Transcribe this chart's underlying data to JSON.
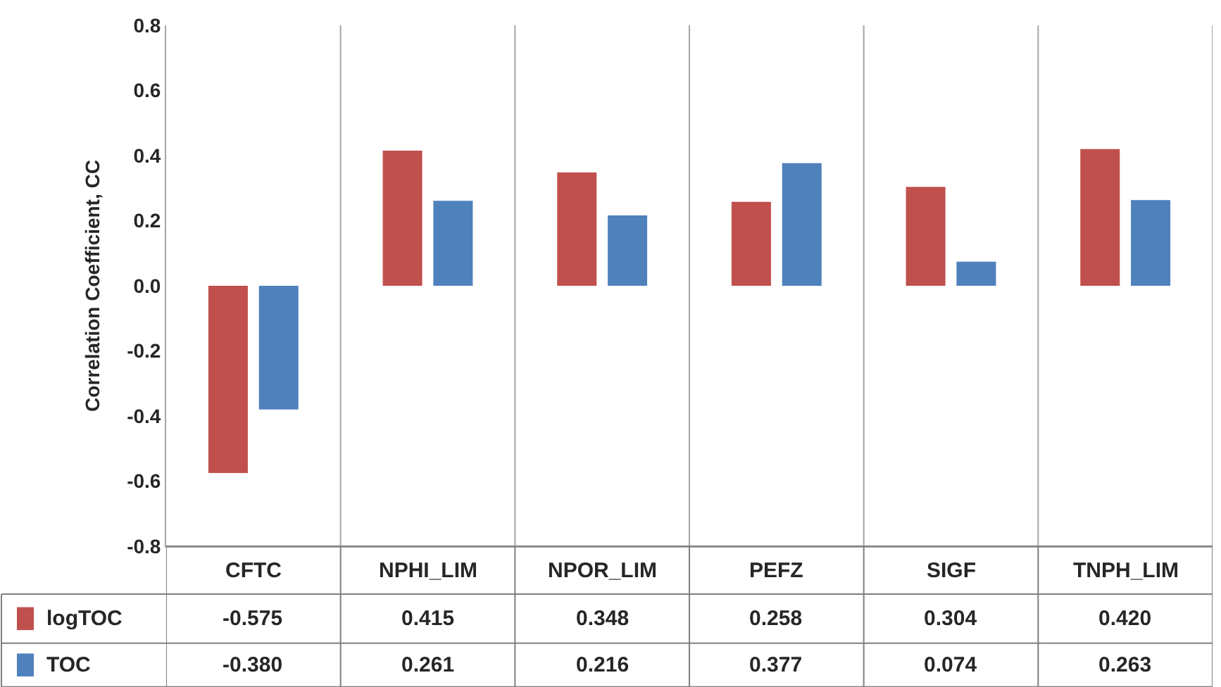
{
  "chart_data": {
    "type": "bar",
    "ylabel": "Correlation Coefficient, CC",
    "categories": [
      "CFTC",
      "NPHI_LIM",
      "NPOR_LIM",
      "PEFZ",
      "SIGF",
      "TNPH_LIM"
    ],
    "series": [
      {
        "name": "logTOC",
        "color": "#c0504d",
        "values": [
          -0.575,
          0.415,
          0.348,
          0.258,
          0.304,
          0.42
        ],
        "value_labels": [
          "-0.575",
          "0.415",
          "0.348",
          "0.258",
          "0.304",
          "0.420"
        ]
      },
      {
        "name": "TOC",
        "color": "#4f81bd",
        "values": [
          -0.38,
          0.261,
          0.216,
          0.377,
          0.074,
          0.263
        ],
        "value_labels": [
          "-0.380",
          "0.261",
          "0.216",
          "0.377",
          "0.074",
          "0.263"
        ]
      }
    ],
    "ylim": [
      -0.8,
      0.8
    ],
    "yticks": [
      {
        "value": -0.8,
        "label": "-0.8"
      },
      {
        "value": -0.6,
        "label": "-0.6"
      },
      {
        "value": -0.4,
        "label": "-0.4"
      },
      {
        "value": -0.2,
        "label": "-0.2"
      },
      {
        "value": 0,
        "label": "0.0"
      },
      {
        "value": 0.2,
        "label": "0.2"
      },
      {
        "value": 0.4,
        "label": "0.4"
      },
      {
        "value": 0.6,
        "label": "0.6"
      },
      {
        "value": 0.8,
        "label": "0.8"
      }
    ],
    "grid": "x",
    "legend": "bottom left"
  }
}
